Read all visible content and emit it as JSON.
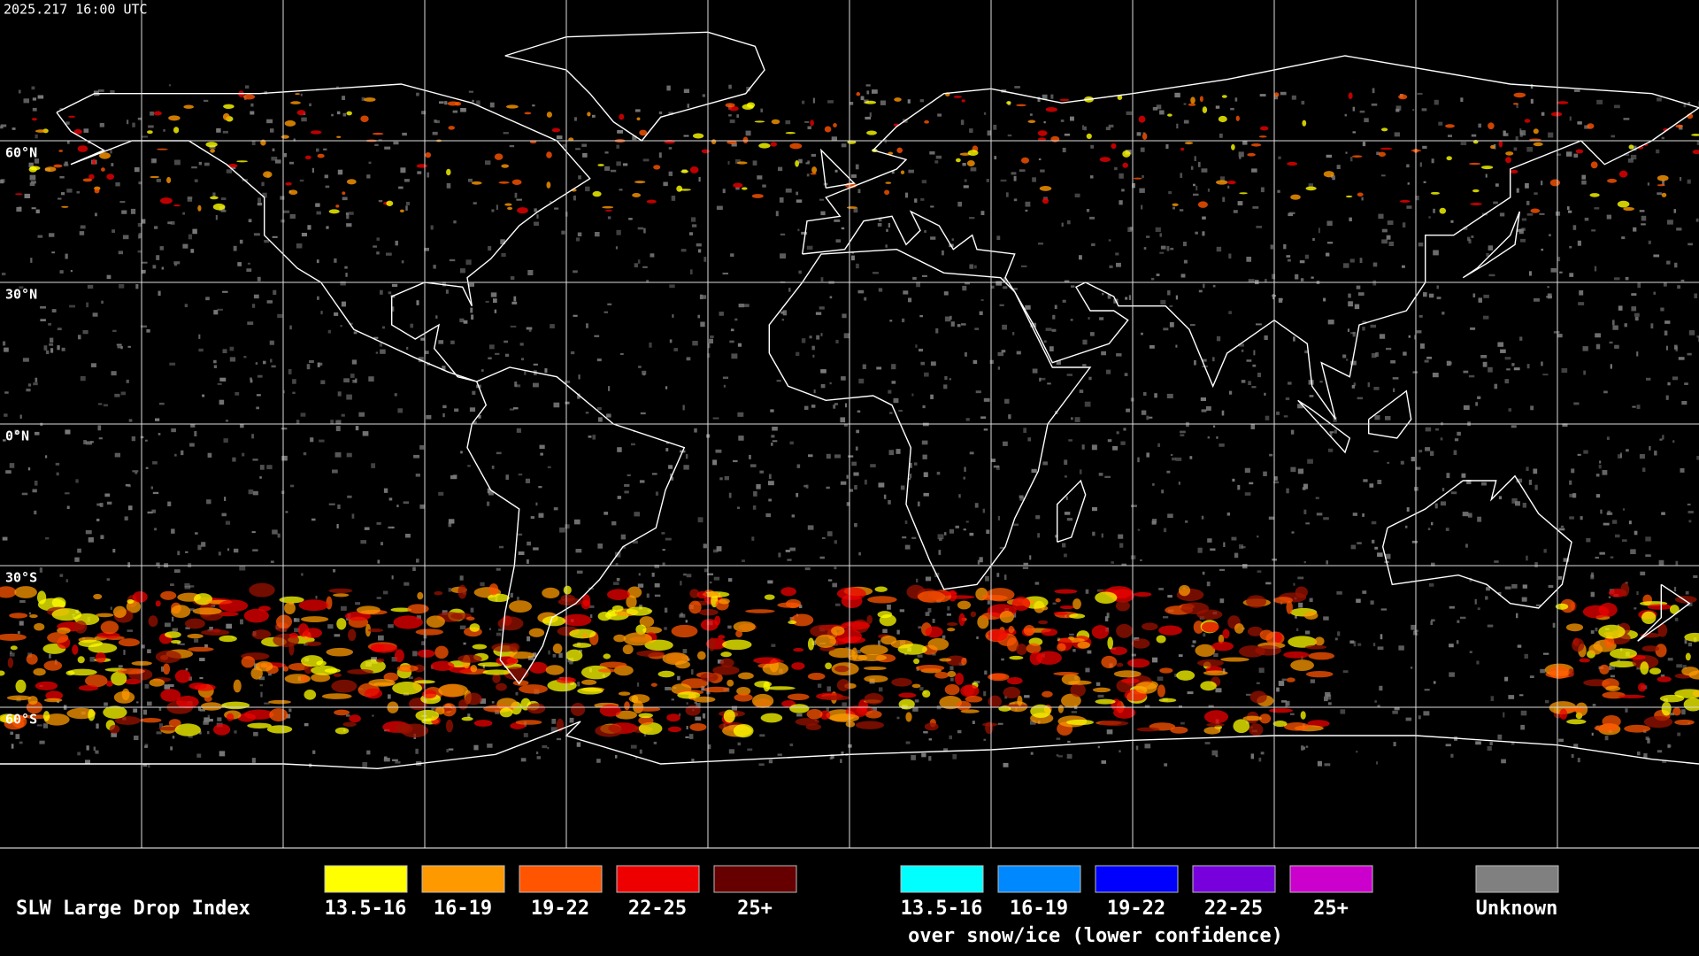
{
  "header": {
    "timestamp": "2025.217 16:00 UTC"
  },
  "map": {
    "latitude_labels": [
      "60°N",
      "30°N",
      "0°N",
      "30°S",
      "60°S"
    ]
  },
  "legend": {
    "title": "SLW Large Drop Index",
    "items": [
      {
        "label": "13.5-16",
        "color": "#ffff00"
      },
      {
        "label": "16-19",
        "color": "#ff9900"
      },
      {
        "label": "19-22",
        "color": "#ff5500"
      },
      {
        "label": "22-25",
        "color": "#ee0000"
      },
      {
        "label": "25+",
        "color": "#660000"
      }
    ],
    "snow_ice_items": [
      {
        "label": "13.5-16",
        "color": "#00ffff"
      },
      {
        "label": "16-19",
        "color": "#0088ff"
      },
      {
        "label": "19-22",
        "color": "#0000ff"
      },
      {
        "label": "22-25",
        "color": "#7700dd"
      },
      {
        "label": "25+",
        "color": "#cc00cc"
      }
    ],
    "snow_ice_note": "over snow/ice (lower confidence)",
    "unknown": {
      "label": "Unknown",
      "color": "#808080"
    }
  }
}
